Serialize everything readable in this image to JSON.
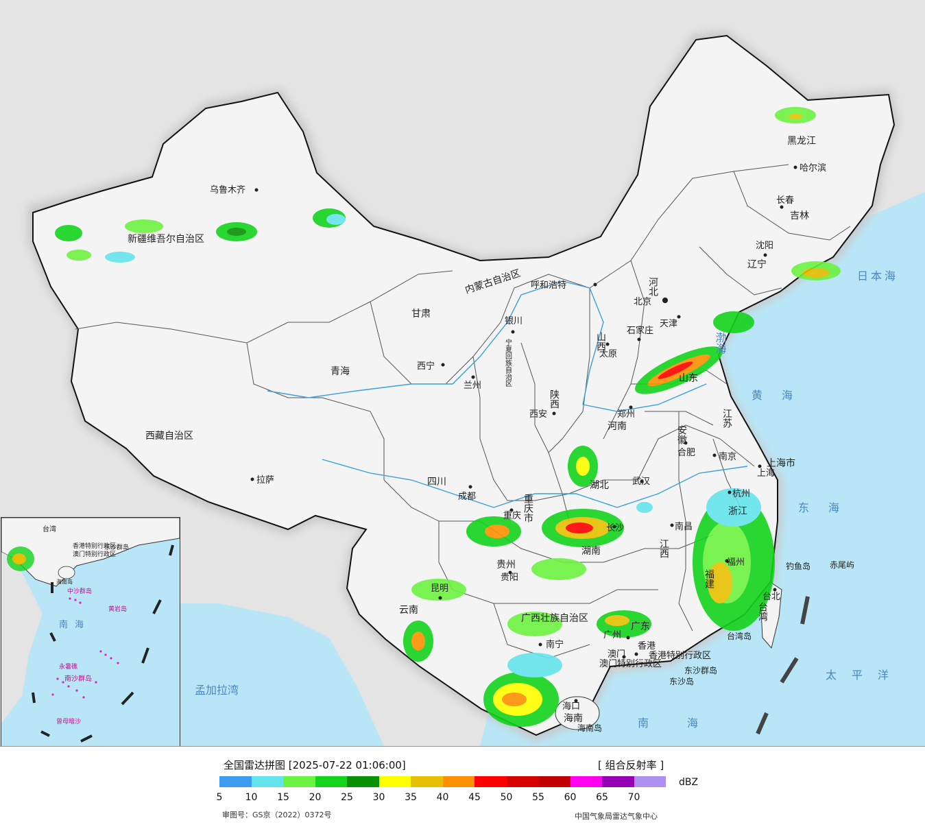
{
  "header": {
    "title": "全国雷达拼图 [2025-07-22 01:06:00]",
    "product": "[ 组合反射率 ]",
    "unit": "dBZ"
  },
  "legend": {
    "colors": [
      "#3e9cf0",
      "#64e4ec",
      "#6cf240",
      "#13d31b",
      "#099106",
      "#ffff00",
      "#e6c000",
      "#ff9000",
      "#ff0000",
      "#d60000",
      "#c00000",
      "#ff00f0",
      "#9600b4",
      "#ad90f0"
    ],
    "tick_values": [
      "5",
      "10",
      "15",
      "20",
      "25",
      "30",
      "35",
      "40",
      "45",
      "50",
      "55",
      "60",
      "65",
      "70"
    ]
  },
  "footer": {
    "approval": "审图号：GS京（2022）0372号",
    "center": "中国气象局雷达气象中心"
  },
  "map": {
    "provinces": [
      "新疆维吾尔自治区",
      "西藏自治区",
      "青海",
      "甘肃",
      "内蒙古自治区",
      "黑龙江",
      "吉林",
      "辽宁",
      "河北",
      "山西",
      "陕西",
      "四川",
      "重庆市",
      "湖北",
      "河南",
      "山东",
      "安徽",
      "江苏",
      "上海市",
      "浙江",
      "江西",
      "湖南",
      "贵州",
      "云南",
      "广西壮族自治区",
      "广东",
      "福建",
      "台湾",
      "海南",
      "宁夏回族自治区"
    ],
    "cities": [
      "乌鲁木齐",
      "哈尔滨",
      "长春",
      "沈阳",
      "北京",
      "天津",
      "石家庄",
      "太原",
      "呼和浩特",
      "银川",
      "西宁",
      "兰州",
      "西安",
      "郑州",
      "合肥",
      "南京",
      "上海",
      "杭州",
      "武汉",
      "长沙",
      "南昌",
      "福州",
      "台北",
      "重庆",
      "成都",
      "贵阳",
      "昆明",
      "南宁",
      "广州",
      "香港",
      "澳门",
      "海口",
      "拉萨"
    ],
    "special_regions": [
      "香港特别行政区",
      "澳门特别行政区"
    ],
    "seas": [
      "渤海",
      "黄海",
      "东海",
      "南海",
      "日本海",
      "太平洋",
      "孟加拉湾"
    ],
    "islands": [
      "钓鱼岛",
      "赤尾屿",
      "台湾岛",
      "海南岛",
      "东沙群岛",
      "东沙岛"
    ],
    "inset": {
      "labels": [
        "南海",
        "台湾",
        "香港特别行政区",
        "澳门特别行政区",
        "东沙群岛",
        "中沙群岛",
        "黄岩岛",
        "永暑礁",
        "南沙群岛",
        "曾母暗沙",
        "海南岛"
      ]
    }
  }
}
